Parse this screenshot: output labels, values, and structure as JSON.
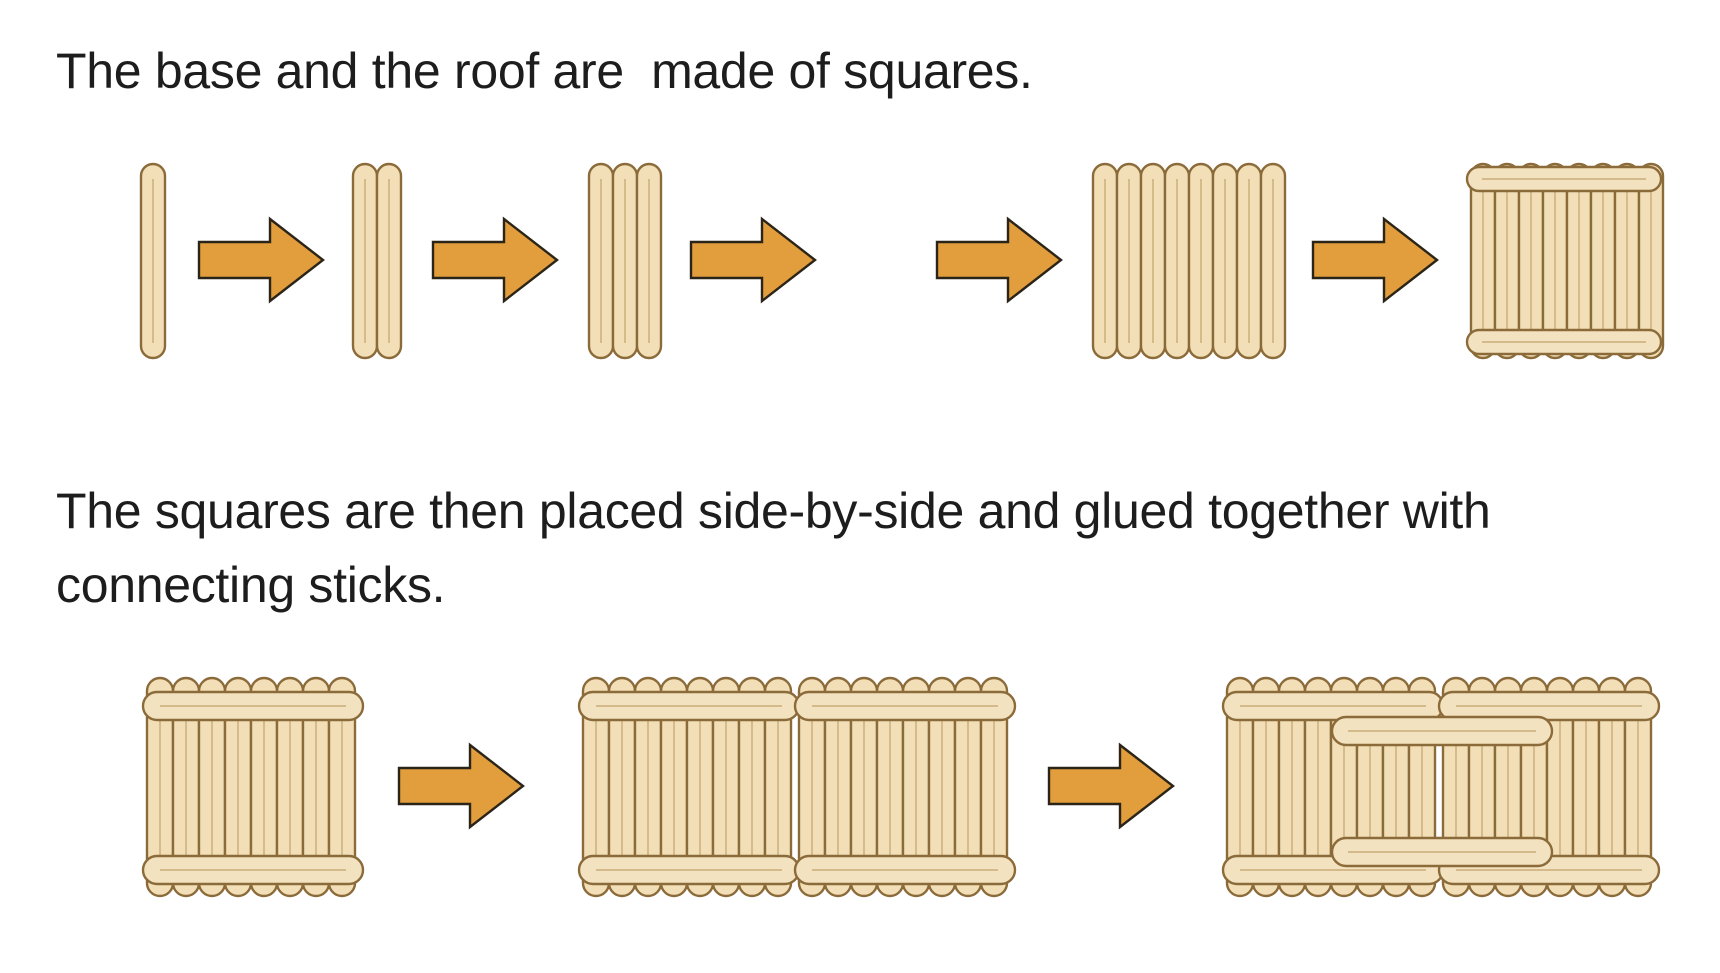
{
  "captions": {
    "first": "The base and the roof are  made of squares.",
    "second": "The squares are then placed side-by-side and glued together with connecting sticks."
  },
  "colors": {
    "stick_fill": "#f2dfb8",
    "stick_outline": "#8c6b3a",
    "arrow_fill": "#e29d3c",
    "arrow_outline": "#2b2418",
    "text": "#1d1d1d"
  },
  "steps": {
    "row1_stick_counts": [
      1,
      2,
      3,
      8
    ],
    "row1_final": "square (8 vertical sticks, 2 horizontal sticks)",
    "row2": [
      "one square",
      "two squares side-by-side",
      "two squares glued with connecting sticks"
    ]
  },
  "icons": [
    "popsicle-stick-icon",
    "right-arrow-icon",
    "stick-square-icon"
  ]
}
